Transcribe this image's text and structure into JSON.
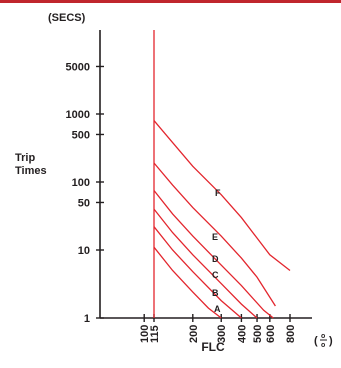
{
  "colors": {
    "curve": "#e3262e",
    "axis": "#231f20",
    "frame_bar": "#c0262d"
  },
  "chart_data": {
    "type": "line",
    "title": "",
    "ylabel_top": "(SECS)",
    "ylabel_line1": "Trip",
    "ylabel_line2": "Times",
    "xlabel": "FLC",
    "x_unit_open": "(",
    "x_unit_num": "o",
    "x_unit_den": "o",
    "x_unit_close": ")",
    "x_scale": "log",
    "y_scale": "log",
    "xlim": [
      70,
      900
    ],
    "ylim": [
      1,
      10000
    ],
    "grid": false,
    "yticks": [
      {
        "v": 1,
        "label": "1"
      },
      {
        "v": 10,
        "label": "10"
      },
      {
        "v": 50,
        "label": "50"
      },
      {
        "v": 100,
        "label": "100"
      },
      {
        "v": 500,
        "label": "500"
      },
      {
        "v": 1000,
        "label": "1000"
      },
      {
        "v": 5000,
        "label": "5000"
      }
    ],
    "xticks": [
      {
        "v": 100,
        "label": "100"
      },
      {
        "v": 115,
        "label": "115"
      },
      {
        "v": 200,
        "label": "200"
      },
      {
        "v": 300,
        "label": "300"
      },
      {
        "v": 400,
        "label": "400"
      },
      {
        "v": 500,
        "label": "500"
      },
      {
        "v": 600,
        "label": "600"
      },
      {
        "v": 800,
        "label": "800"
      }
    ],
    "threshold_x": 115,
    "series": [
      {
        "name": "A",
        "x": [
          115,
          150,
          200,
          250,
          300
        ],
        "y": [
          11,
          5,
          2.4,
          1.4,
          1
        ]
      },
      {
        "name": "B",
        "x": [
          115,
          150,
          200,
          300,
          400
        ],
        "y": [
          22,
          10,
          4.8,
          1.8,
          1
        ]
      },
      {
        "name": "C",
        "x": [
          115,
          150,
          200,
          300,
          400,
          500
        ],
        "y": [
          40,
          18,
          8.5,
          3.2,
          1.6,
          1
        ]
      },
      {
        "name": "D",
        "x": [
          115,
          150,
          200,
          300,
          400,
          550,
          630
        ],
        "y": [
          75,
          34,
          16,
          6,
          3,
          1.3,
          1
        ]
      },
      {
        "name": "E",
        "x": [
          115,
          150,
          200,
          300,
          400,
          500,
          650
        ],
        "y": [
          190,
          90,
          42,
          16,
          7.6,
          4,
          1.5
        ]
      },
      {
        "name": "F",
        "x": [
          115,
          150,
          200,
          300,
          400,
          500,
          600,
          800
        ],
        "y": [
          800,
          380,
          170,
          65,
          30,
          15,
          8.5,
          5
        ]
      }
    ]
  }
}
